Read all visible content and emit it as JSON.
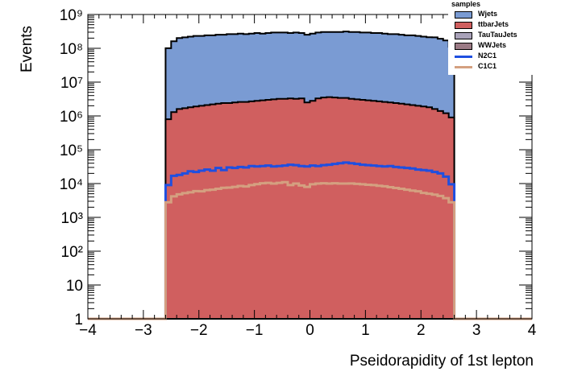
{
  "chart_data": {
    "type": "area",
    "title": "",
    "xlabel": "Pseidorapidity of 1st lepton",
    "ylabel": "Events",
    "log_y": true,
    "xlim": [
      -4,
      4
    ],
    "ylim": [
      1,
      1000000000
    ],
    "x_ticks": [
      "−4",
      "−3",
      "−2",
      "−1",
      "0",
      "1",
      "2",
      "3",
      "4"
    ],
    "x_tick_values": [
      -4,
      -3,
      -2,
      -1,
      0,
      1,
      2,
      3,
      4
    ],
    "y_ticks": [
      "1",
      "10",
      "10²",
      "10³",
      "10⁴",
      "10⁵",
      "10⁶",
      "10⁷",
      "10⁸",
      "10⁹"
    ],
    "y_tick_values": [
      1,
      10,
      100,
      1000,
      10000,
      100000,
      1000000,
      10000000,
      100000000,
      1000000000
    ],
    "legend_title": "samples",
    "legend_position": "top-right",
    "grid": false,
    "bin_edges": [
      -2.6,
      -2.5,
      -2.4,
      -2.3,
      -2.2,
      -2.1,
      -2.0,
      -1.9,
      -1.8,
      -1.7,
      -1.6,
      -1.5,
      -1.4,
      -1.3,
      -1.2,
      -1.1,
      -1.0,
      -0.9,
      -0.8,
      -0.7,
      -0.6,
      -0.5,
      -0.4,
      -0.3,
      -0.2,
      -0.1,
      0.0,
      0.1,
      0.2,
      0.3,
      0.4,
      0.5,
      0.6,
      0.7,
      0.8,
      0.9,
      1.0,
      1.1,
      1.2,
      1.3,
      1.4,
      1.5,
      1.6,
      1.7,
      1.8,
      1.9,
      2.0,
      2.1,
      2.2,
      2.3,
      2.4,
      2.5,
      2.6
    ],
    "stacked_series": [
      {
        "name": "Wjets",
        "color": "#7a9bd3",
        "values": [
          100000000.0,
          160000000.0,
          200000000.0,
          210000000.0,
          220000000.0,
          230000000.0,
          230000000.0,
          240000000.0,
          240000000.0,
          250000000.0,
          250000000.0,
          260000000.0,
          260000000.0,
          270000000.0,
          260000000.0,
          270000000.0,
          280000000.0,
          270000000.0,
          280000000.0,
          290000000.0,
          290000000.0,
          290000000.0,
          280000000.0,
          290000000.0,
          280000000.0,
          250000000.0,
          270000000.0,
          290000000.0,
          300000000.0,
          300000000.0,
          300000000.0,
          300000000.0,
          310000000.0,
          300000000.0,
          300000000.0,
          290000000.0,
          290000000.0,
          280000000.0,
          280000000.0,
          270000000.0,
          260000000.0,
          260000000.0,
          250000000.0,
          240000000.0,
          240000000.0,
          230000000.0,
          220000000.0,
          210000000.0,
          210000000.0,
          190000000.0,
          170000000.0,
          110000000.0
        ]
      },
      {
        "name": "ttbarJets",
        "color": "#d05f5f",
        "values": [
          800000.0,
          1300000.0,
          1600000.0,
          1700000.0,
          1800000.0,
          1900000.0,
          2000000.0,
          2100000.0,
          2200000.0,
          2300000.0,
          2400000.0,
          2400000.0,
          2500000.0,
          2600000.0,
          2600000.0,
          2700000.0,
          2800000.0,
          2900000.0,
          3000000.0,
          3100000.0,
          3200000.0,
          3200000.0,
          3300000.0,
          3200000.0,
          3300000.0,
          2500000.0,
          2800000.0,
          3300000.0,
          3500000.0,
          3600000.0,
          3500000.0,
          3400000.0,
          3400000.0,
          3200000.0,
          3100000.0,
          3000000.0,
          2900000.0,
          2800000.0,
          2700000.0,
          2600000.0,
          2500000.0,
          2400000.0,
          2300000.0,
          2200000.0,
          2100000.0,
          2000000.0,
          1900000.0,
          1800000.0,
          1600000.0,
          1400000.0,
          1200000.0,
          900000.0
        ]
      },
      {
        "name": "TauTauJets",
        "color": "#a9a2b9",
        "values": []
      },
      {
        "name": "WWJets",
        "color": "#9b7a85",
        "values": []
      }
    ],
    "line_series": [
      {
        "name": "N2C1",
        "color": "#1f4fe0",
        "values": [
          9000,
          17000,
          18000,
          20000,
          23000,
          22000,
          24000,
          26000,
          24000,
          29000,
          25000,
          30000,
          29000,
          31000,
          30000,
          33000,
          32000,
          33000,
          34000,
          32000,
          33000,
          34000,
          36000,
          35000,
          33000,
          32000,
          34000,
          33000,
          35000,
          36000,
          38000,
          40000,
          42000,
          40000,
          38000,
          36000,
          35000,
          34000,
          33000,
          32000,
          33000,
          31000,
          30000,
          29000,
          28000,
          26000,
          25000,
          24000,
          22000,
          20000,
          16000,
          9500
        ]
      },
      {
        "name": "C1C1",
        "color": "#d4a080",
        "values": [
          2800,
          4200,
          4800,
          5200,
          5500,
          6000,
          5900,
          6400,
          6600,
          7000,
          7500,
          7600,
          8000,
          8500,
          8200,
          9000,
          9600,
          10200,
          10500,
          10000,
          10500,
          11000,
          9000,
          10000,
          8800,
          8000,
          9500,
          10000,
          10200,
          10000,
          10200,
          10000,
          10000,
          10100,
          9800,
          9500,
          9200,
          9000,
          8600,
          8300,
          7800,
          7400,
          7000,
          6600,
          6200,
          5900,
          5300,
          5000,
          4700,
          4300,
          3700,
          2800
        ]
      }
    ]
  }
}
